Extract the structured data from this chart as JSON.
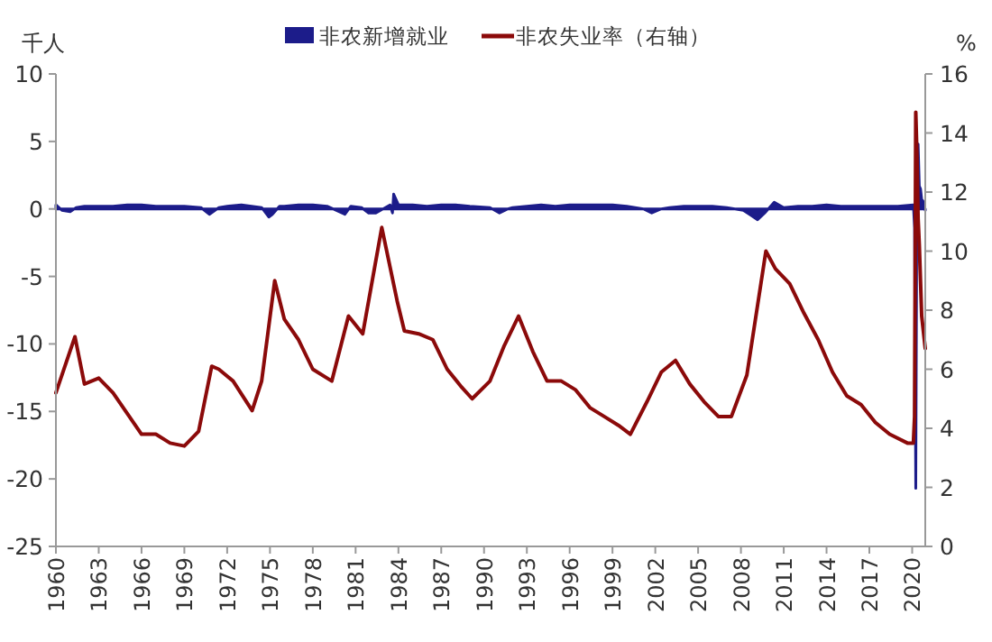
{
  "chart_data": {
    "type": "area",
    "ylabel": "千人",
    "y2label": "%",
    "legend": "top",
    "xlim": [
      "1960-01",
      "2020-12"
    ],
    "xticks": [
      "1960",
      "1963",
      "1966",
      "1969",
      "1972",
      "1975",
      "1978",
      "1981",
      "1984",
      "1987",
      "1990",
      "1993",
      "1996",
      "1999",
      "2002",
      "2005",
      "2008",
      "2011",
      "2014",
      "2017",
      "2020"
    ],
    "ylim": [
      -25,
      10
    ],
    "yticks": [
      -25,
      -20,
      -15,
      -10,
      -5,
      0,
      5,
      10
    ],
    "y2lim": [
      0,
      16
    ],
    "y2ticks": [
      0,
      2,
      4,
      6,
      8,
      10,
      12,
      14,
      16
    ],
    "series": [
      {
        "name": "非农新增就业",
        "color": "#1c1c8a",
        "x": [
          "1960-01",
          "1960-06",
          "1961-01",
          "1961-06",
          "1962-01",
          "1963-01",
          "1964-01",
          "1965-01",
          "1966-01",
          "1967-01",
          "1968-01",
          "1969-01",
          "1970-03",
          "1970-10",
          "1971-06",
          "1972-01",
          "1973-01",
          "1974-06",
          "1974-12",
          "1975-03",
          "1975-09",
          "1976-01",
          "1977-01",
          "1978-01",
          "1979-01",
          "1980-04",
          "1980-09",
          "1981-06",
          "1981-12",
          "1982-06",
          "1983-06",
          "1983-08",
          "1983-09",
          "1984-01",
          "1985-01",
          "1986-01",
          "1987-01",
          "1988-01",
          "1989-01",
          "1990-06",
          "1991-02",
          "1991-09",
          "1992-01",
          "1993-01",
          "1994-01",
          "1995-01",
          "1996-01",
          "1997-01",
          "1998-01",
          "1999-01",
          "2000-01",
          "2001-03",
          "2001-10",
          "2002-06",
          "2003-01",
          "2004-01",
          "2005-01",
          "2006-01",
          "2007-01",
          "2008-03",
          "2008-10",
          "2009-03",
          "2009-09",
          "2010-05",
          "2011-01",
          "2012-01",
          "2013-01",
          "2014-01",
          "2015-01",
          "2016-01",
          "2017-01",
          "2018-01",
          "2019-01",
          "2020-02",
          "2020-03",
          "2020-04",
          "2020-05",
          "2020-06",
          "2020-07",
          "2020-08",
          "2020-09",
          "2020-10",
          "2020-11",
          "2020-12"
        ],
        "values": [
          0.3,
          -0.1,
          -0.2,
          0.1,
          0.2,
          0.2,
          0.2,
          0.3,
          0.3,
          0.2,
          0.2,
          0.2,
          0.1,
          -0.4,
          0.1,
          0.2,
          0.3,
          0.1,
          -0.6,
          -0.4,
          0.2,
          0.2,
          0.3,
          0.3,
          0.2,
          -0.4,
          0.2,
          0.1,
          -0.3,
          -0.3,
          0.3,
          -0.3,
          1.1,
          0.3,
          0.3,
          0.2,
          0.3,
          0.3,
          0.2,
          0.1,
          -0.3,
          0.0,
          0.1,
          0.2,
          0.3,
          0.2,
          0.3,
          0.3,
          0.3,
          0.3,
          0.2,
          0.0,
          -0.3,
          0.0,
          0.1,
          0.2,
          0.2,
          0.2,
          0.1,
          -0.1,
          -0.5,
          -0.8,
          -0.3,
          0.5,
          0.1,
          0.2,
          0.2,
          0.3,
          0.2,
          0.2,
          0.2,
          0.2,
          0.2,
          0.3,
          -1.4,
          -20.7,
          2.7,
          4.8,
          1.7,
          1.5,
          0.7,
          0.6,
          0.3,
          -0.1
        ]
      },
      {
        "name": "非农失业率（右轴）",
        "type": "line",
        "axis": "y2",
        "color": "#8b0a0a",
        "x": [
          "1960-01",
          "1961-05",
          "1962-01",
          "1963-01",
          "1964-01",
          "1965-01",
          "1966-01",
          "1967-01",
          "1968-01",
          "1969-01",
          "1970-01",
          "1970-12",
          "1971-06",
          "1972-06",
          "1973-10",
          "1974-06",
          "1975-05",
          "1976-01",
          "1977-01",
          "1978-01",
          "1979-05",
          "1980-07",
          "1981-07",
          "1982-11",
          "1983-12",
          "1984-06",
          "1985-06",
          "1986-06",
          "1987-06",
          "1988-06",
          "1989-03",
          "1990-06",
          "1991-06",
          "1992-06",
          "1993-06",
          "1994-06",
          "1995-06",
          "1996-06",
          "1997-06",
          "1998-06",
          "1999-06",
          "2000-04",
          "2001-06",
          "2002-06",
          "2003-06",
          "2004-06",
          "2005-06",
          "2006-06",
          "2007-05",
          "2008-06",
          "2009-10",
          "2010-06",
          "2011-06",
          "2012-06",
          "2013-06",
          "2014-06",
          "2015-06",
          "2016-06",
          "2017-06",
          "2018-06",
          "2019-09",
          "2020-02",
          "2020-03",
          "2020-04",
          "2020-05",
          "2020-06",
          "2020-07",
          "2020-09",
          "2020-12"
        ],
        "values": [
          5.2,
          7.1,
          5.5,
          5.7,
          5.2,
          4.5,
          3.8,
          3.8,
          3.5,
          3.4,
          3.9,
          6.1,
          6.0,
          5.6,
          4.6,
          5.6,
          9.0,
          7.7,
          7.0,
          6.0,
          5.6,
          7.8,
          7.2,
          10.8,
          8.3,
          7.3,
          7.2,
          7.0,
          6.0,
          5.4,
          5.0,
          5.6,
          6.8,
          7.8,
          6.6,
          5.6,
          5.6,
          5.3,
          4.7,
          4.4,
          4.1,
          3.8,
          4.9,
          5.9,
          6.3,
          5.5,
          4.9,
          4.4,
          4.4,
          5.8,
          10.0,
          9.4,
          8.9,
          7.9,
          7.0,
          5.9,
          5.1,
          4.8,
          4.2,
          3.8,
          3.5,
          3.5,
          4.4,
          14.7,
          13.3,
          11.1,
          10.2,
          7.8,
          6.7
        ]
      }
    ]
  }
}
